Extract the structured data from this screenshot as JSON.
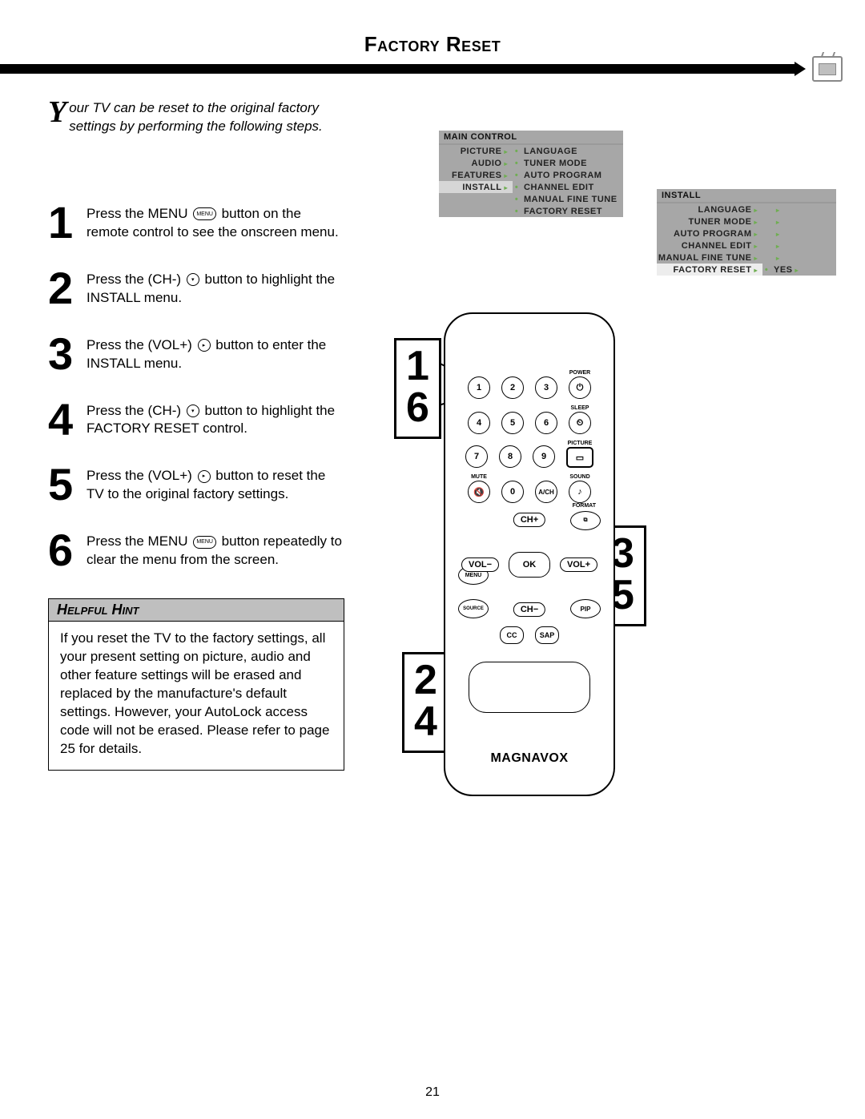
{
  "title": "Factory Reset",
  "intro": {
    "drop": "Y",
    "rest": "our TV can be reset to the original factory settings by performing the following steps."
  },
  "steps": [
    {
      "n": "1",
      "pre": "Press the MENU ",
      "btn": "MENU",
      "post": " button on the remote control to see the onscreen menu."
    },
    {
      "n": "2",
      "pre": "Press the (CH-) ",
      "btn": "▾",
      "post": " button to highlight the INSTALL menu."
    },
    {
      "n": "3",
      "pre": "Press the (VOL+) ",
      "btn": "▸",
      "post": " button to enter the INSTALL menu."
    },
    {
      "n": "4",
      "pre": "Press the (CH-) ",
      "btn": "▾",
      "post": " button to highlight the FACTORY RESET control."
    },
    {
      "n": "5",
      "pre": "Press the (VOL+) ",
      "btn": "▸",
      "post": " button to reset the TV to the original factory settings."
    },
    {
      "n": "6",
      "pre": "Press the MENU ",
      "btn": "MENU",
      "post": " button repeatedly to clear the menu from the screen."
    }
  ],
  "hint": {
    "title": "Helpful Hint",
    "body": "If you reset the TV to the factory settings, all your present setting on picture, audio and other feature settings will be erased and replaced by the manufacture's default settings. However, your AutoLock access code will not be erased. Please refer to page 25 for details."
  },
  "osd_main": {
    "head": "MAIN CONTROL",
    "left": [
      "PICTURE",
      "AUDIO",
      "FEATURES",
      "INSTALL"
    ],
    "right": [
      "LANGUAGE",
      "TUNER MODE",
      "AUTO PROGRAM",
      "CHANNEL EDIT",
      "MANUAL FINE TUNE",
      "FACTORY RESET"
    ],
    "left_hl_index": 3
  },
  "osd_install": {
    "head": "INSTALL",
    "items": [
      "LANGUAGE",
      "TUNER MODE",
      "AUTO PROGRAM",
      "CHANNEL EDIT",
      "MANUAL FINE TUNE",
      "FACTORY RESET"
    ],
    "hl_index": 5,
    "extra": "YES"
  },
  "callouts": {
    "c1": "1\n6",
    "c2": "2\n4",
    "c3": "3\n5"
  },
  "remote": {
    "labels": {
      "power": "POWER",
      "sleep": "SLEEP",
      "picture": "PICTURE",
      "mute": "MUTE",
      "sound": "SOUND",
      "ach": "A/CH",
      "format": "FORMAT",
      "menu": "MENU",
      "source": "SOURCE",
      "pip": "PIP",
      "ok": "OK",
      "cc": "CC",
      "sap": "SAP",
      "chp": "CH+",
      "chm": "CH−",
      "volm": "VOL−",
      "volp": "VOL+"
    },
    "brand": "MAGNAVOX",
    "numbers": [
      "1",
      "2",
      "3",
      "4",
      "5",
      "6",
      "7",
      "8",
      "9",
      "0"
    ],
    "power_glyph": "⏻",
    "sleep_glyph": "⏲",
    "picture_glyph": "▭",
    "mute_glyph": "🔇",
    "sound_glyph": "♪",
    "format_glyph": "⧉"
  },
  "page_number": "21"
}
